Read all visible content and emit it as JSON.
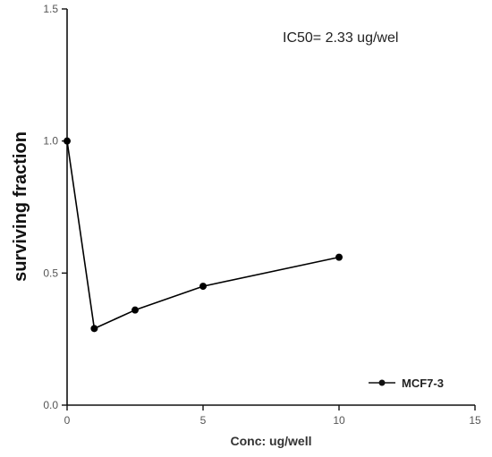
{
  "chart_data": {
    "type": "line",
    "xlabel": "Conc: ug/well",
    "ylabel": "surviving fraction",
    "xlim": [
      0,
      15
    ],
    "ylim": [
      0,
      1.5
    ],
    "x_ticks": [
      "0",
      "5",
      "10",
      "15"
    ],
    "y_ticks": [
      "0.0",
      "0.5",
      "1.0",
      "1.5"
    ],
    "annotation": "IC50= 2.33 ug/wel",
    "legend_position": "bottom-right",
    "grid": false,
    "series": [
      {
        "name": "MCF7-3",
        "color": "#000000",
        "marker": "circle",
        "x": [
          0,
          1,
          2.5,
          5,
          10
        ],
        "y": [
          1.0,
          0.29,
          0.36,
          0.45,
          0.56
        ]
      }
    ]
  }
}
